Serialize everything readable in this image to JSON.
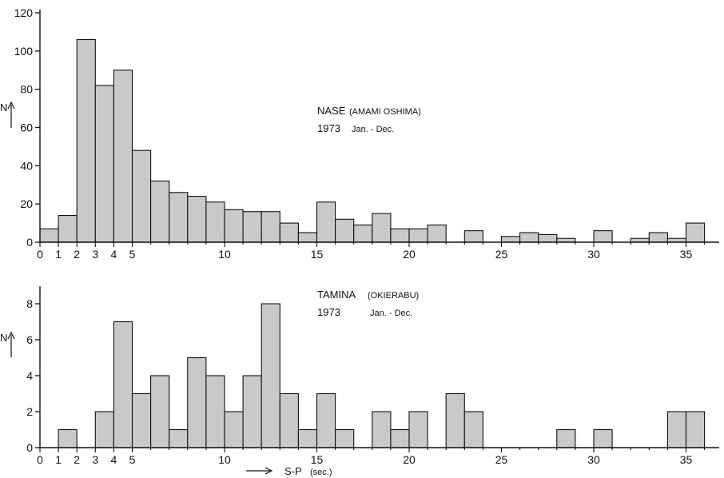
{
  "chart_data": [
    {
      "type": "bar",
      "title": "",
      "annotation": {
        "station": "NASE",
        "region": "(AMAMI OSHIMA)",
        "year": "1973",
        "period": "Jan. - Dec."
      },
      "ylabel": "N",
      "xlabel": "",
      "xlim": [
        0,
        37
      ],
      "ylim": [
        0,
        120
      ],
      "yticks": [
        0,
        20,
        40,
        60,
        80,
        100,
        120
      ],
      "xticks": [
        0,
        1,
        2,
        3,
        4,
        5,
        10,
        15,
        20,
        25,
        30,
        35
      ],
      "bin_starts": [
        0,
        1,
        2,
        3,
        4,
        5,
        6,
        7,
        8,
        9,
        10,
        11,
        12,
        13,
        14,
        15,
        16,
        17,
        18,
        19,
        20,
        21,
        22,
        23,
        24,
        25,
        26,
        27,
        28,
        29,
        30,
        31,
        32,
        33,
        34,
        35
      ],
      "values": [
        7,
        14,
        106,
        82,
        90,
        48,
        32,
        26,
        24,
        21,
        17,
        16,
        16,
        10,
        5,
        21,
        12,
        9,
        15,
        7,
        7,
        9,
        0,
        6,
        0,
        3,
        5,
        4,
        2,
        0,
        6,
        0,
        2,
        5,
        2,
        10
      ]
    },
    {
      "type": "bar",
      "title": "",
      "annotation": {
        "station": "TAMINA",
        "region": "(OKIERABU)",
        "year": "1973",
        "period": "Jan. - Dec."
      },
      "ylabel": "N",
      "xlabel": "S-P",
      "xunit": "(sec.)",
      "xlim": [
        0,
        37
      ],
      "ylim": [
        0,
        8.8
      ],
      "yticks": [
        0,
        2,
        4,
        6,
        8
      ],
      "xticks": [
        0,
        1,
        2,
        3,
        4,
        5,
        10,
        15,
        20,
        25,
        30,
        35
      ],
      "bin_starts": [
        0,
        1,
        2,
        3,
        4,
        5,
        6,
        7,
        8,
        9,
        10,
        11,
        12,
        13,
        14,
        15,
        16,
        17,
        18,
        19,
        20,
        21,
        22,
        23,
        24,
        25,
        26,
        27,
        28,
        29,
        30,
        31,
        32,
        33,
        34,
        35
      ],
      "values": [
        0,
        1,
        0,
        2,
        7,
        3,
        4,
        1,
        5,
        4,
        2,
        4,
        8,
        3,
        1,
        3,
        1,
        0,
        2,
        1,
        2,
        0,
        3,
        2,
        0,
        0,
        0,
        0,
        1,
        0,
        1,
        0,
        0,
        0,
        2,
        2
      ]
    }
  ]
}
